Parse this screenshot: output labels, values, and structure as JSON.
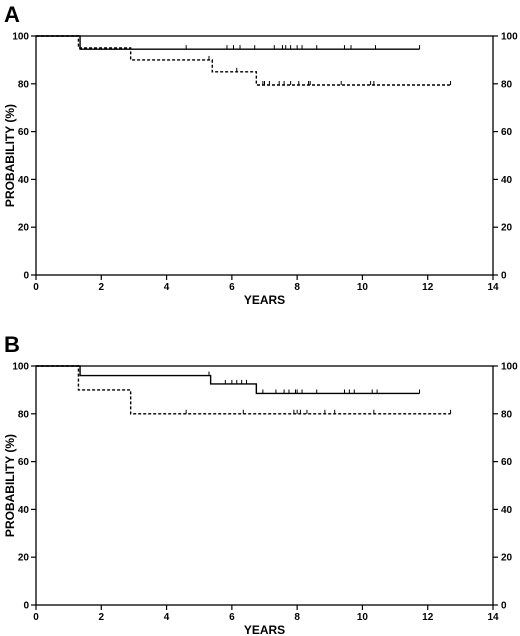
{
  "chart_data": [
    {
      "type": "line",
      "panel_label": "A",
      "xlabel": "YEARS",
      "ylabel": "PROBABILITY (%)",
      "xlim": [
        0,
        14
      ],
      "ylim": [
        0,
        100
      ],
      "x_ticks": [
        0,
        2,
        4,
        6,
        8,
        10,
        12,
        14
      ],
      "y_ticks": [
        0,
        20,
        40,
        60,
        80,
        100
      ],
      "right_axis_ticks": [
        0,
        20,
        40,
        60,
        80,
        100
      ],
      "grid": false,
      "step": true,
      "series": [
        {
          "style": "solid",
          "x": [
            0,
            1.35,
            11.75
          ],
          "y": [
            100,
            94.5,
            94.5
          ],
          "censor_x": [
            4.6,
            5.85,
            6.05,
            6.25,
            6.7,
            7.3,
            7.55,
            7.65,
            7.8,
            8.0,
            8.15,
            8.6,
            9.45,
            9.65,
            10.4,
            11.75
          ]
        },
        {
          "style": "dashed",
          "x": [
            0,
            1.3,
            2.9,
            5.4,
            6.75,
            12.7
          ],
          "y": [
            100,
            95,
            90,
            85,
            79.5,
            79.5
          ],
          "censor_x": [
            5.3,
            6.15,
            6.95,
            7.0,
            7.15,
            7.45,
            7.6,
            7.8,
            8.05,
            8.35,
            8.4,
            9.35,
            10.25,
            10.35,
            12.7
          ]
        }
      ]
    },
    {
      "type": "line",
      "panel_label": "B",
      "xlabel": "YEARS",
      "ylabel": "PROBABILITY (%)",
      "xlim": [
        0,
        14
      ],
      "ylim": [
        0,
        100
      ],
      "x_ticks": [
        0,
        2,
        4,
        6,
        8,
        10,
        12,
        14
      ],
      "y_ticks": [
        0,
        20,
        40,
        60,
        80,
        100
      ],
      "right_axis_ticks": [
        0,
        20,
        40,
        60,
        80,
        100
      ],
      "grid": false,
      "step": true,
      "series": [
        {
          "style": "solid",
          "x": [
            0,
            1.35,
            5.35,
            6.75,
            11.75
          ],
          "y": [
            100,
            96,
            92.5,
            88.5,
            88.5
          ],
          "censor_x": [
            5.3,
            5.8,
            6.0,
            6.15,
            6.3,
            6.45,
            6.95,
            7.35,
            7.6,
            7.75,
            7.95,
            8.0,
            8.15,
            8.6,
            9.45,
            9.6,
            9.75,
            10.3,
            10.45,
            11.75
          ]
        },
        {
          "style": "dashed",
          "x": [
            0,
            1.3,
            2.9,
            12.7
          ],
          "y": [
            100,
            90,
            80,
            80
          ],
          "censor_x": [
            4.6,
            6.35,
            7.9,
            8.0,
            8.1,
            8.3,
            8.85,
            9.15,
            10.35,
            12.7
          ]
        }
      ]
    }
  ]
}
